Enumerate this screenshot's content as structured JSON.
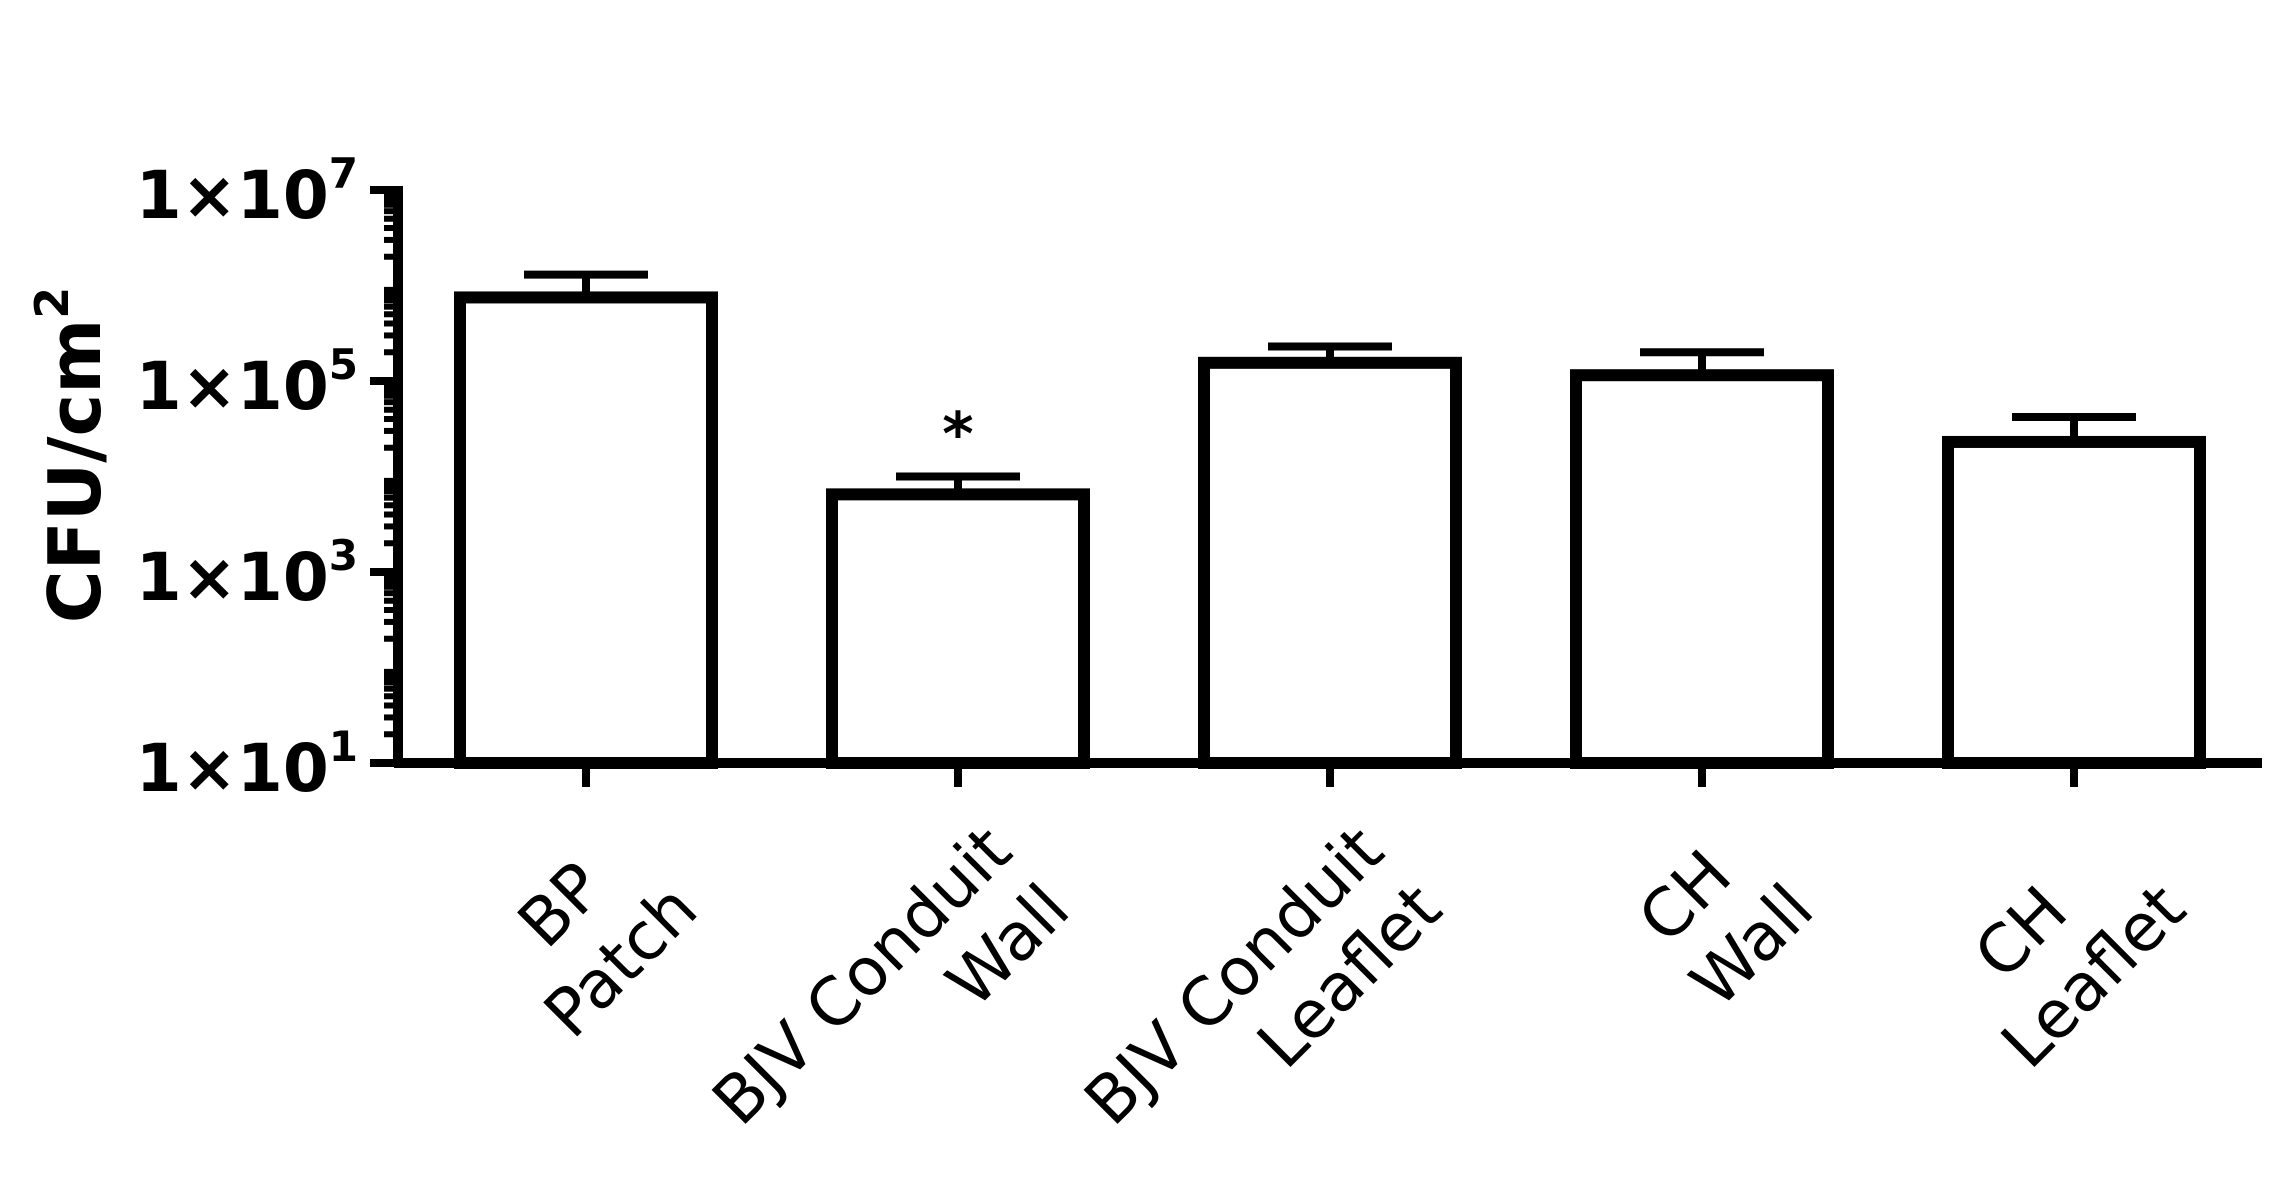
{
  "chart_data": {
    "type": "bar",
    "ylabel": "CFU/cm",
    "ylabel_sup": "2",
    "yscale": "log",
    "ylim": [
      10,
      10000000
    ],
    "yticks": [
      {
        "mantissa": "1×10",
        "exp": "1",
        "value": 10
      },
      {
        "mantissa": "1×10",
        "exp": "3",
        "value": 1000
      },
      {
        "mantissa": "1×10",
        "exp": "5",
        "value": 100000
      },
      {
        "mantissa": "1×10",
        "exp": "7",
        "value": 10000000
      }
    ],
    "categories": [
      {
        "lines": [
          "BP",
          "Patch"
        ],
        "value": 750000,
        "error_upper": 1300000
      },
      {
        "lines": [
          "BJV Conduit",
          "Wall"
        ],
        "value": 6500,
        "error_upper": 10000,
        "annotation": "*"
      },
      {
        "lines": [
          "BJV Conduit",
          "Leaflet"
        ],
        "value": 155000,
        "error_upper": 230000
      },
      {
        "lines": [
          "CH",
          "Wall"
        ],
        "value": 115000,
        "error_upper": 200000
      },
      {
        "lines": [
          "CH",
          "Leaflet"
        ],
        "value": 23000,
        "error_upper": 42000
      }
    ],
    "colors": {
      "bar_fill": "#ffffff",
      "stroke": "#000000"
    }
  }
}
